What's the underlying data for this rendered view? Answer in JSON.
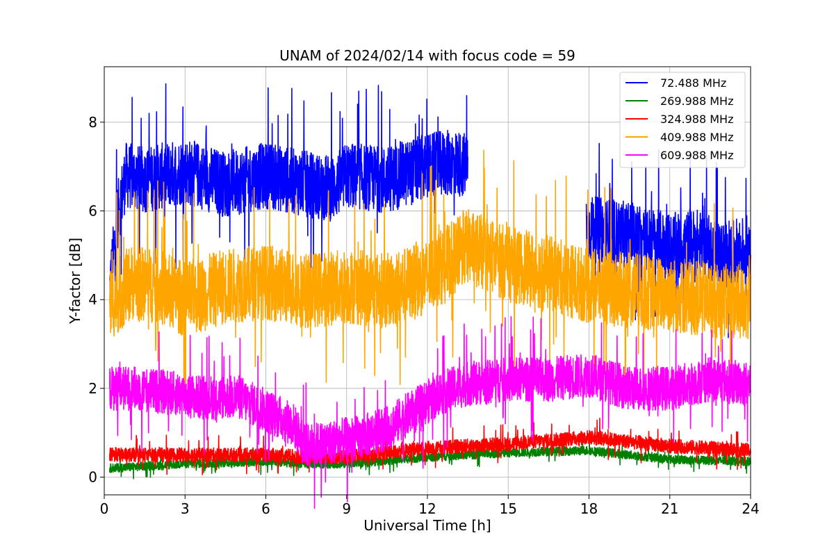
{
  "chart_data": {
    "type": "line",
    "title": "UNAM of 2024/02/14 with focus code = 59",
    "xlabel": "Universal Time [h]",
    "ylabel": "Y-factor [dB]",
    "xlim": [
      0,
      24
    ],
    "ylim": [
      -0.4,
      9.25
    ],
    "xticks": [
      0,
      3,
      6,
      9,
      12,
      15,
      18,
      21,
      24
    ],
    "yticks": [
      0,
      2,
      4,
      6,
      8
    ],
    "xtick_labels": [
      "0",
      "3",
      "6",
      "9",
      "12",
      "15",
      "18",
      "21",
      "24"
    ],
    "ytick_labels": [
      "0",
      "2",
      "4",
      "6",
      "8"
    ],
    "grid": true,
    "legend_position": "top-right",
    "series": [
      {
        "name": " 72.488 MHz",
        "color": "#0000ff",
        "x": [
          0.2,
          0.5,
          0.8,
          1.5,
          3,
          4.5,
          6,
          7.5,
          8.5,
          9,
          10.5,
          12,
          13,
          13.5,
          18,
          19,
          20,
          21,
          22,
          23,
          24
        ],
        "y": [
          4.2,
          5.9,
          6.8,
          6.7,
          6.9,
          6.6,
          6.8,
          6.6,
          6.5,
          6.8,
          6.7,
          7.0,
          7.1,
          7.0,
          5.6,
          5.5,
          5.4,
          5.2,
          5.3,
          5.0,
          5.2
        ],
        "noise": 0.75,
        "visible_ranges": [
          [
            0.2,
            13.5
          ],
          [
            17.9,
            24
          ]
        ]
      },
      {
        "name": "269.988 MHz",
        "color": "#008000",
        "x": [
          0.2,
          3,
          6,
          7.5,
          9,
          12,
          15,
          18,
          21,
          24
        ],
        "y": [
          0.2,
          0.3,
          0.35,
          0.3,
          0.3,
          0.45,
          0.55,
          0.6,
          0.4,
          0.35
        ],
        "noise": 0.1
      },
      {
        "name": "324.988 MHz",
        "color": "#ff0000",
        "x": [
          0.2,
          3,
          6,
          7.5,
          9,
          12,
          15,
          18,
          21,
          24
        ],
        "y": [
          0.5,
          0.5,
          0.5,
          0.45,
          0.45,
          0.65,
          0.75,
          0.9,
          0.7,
          0.6
        ],
        "noise": 0.16
      },
      {
        "name": "409.988 MHz",
        "color": "#ffa500",
        "x": [
          0.2,
          1,
          2,
          3,
          4.5,
          6,
          7.5,
          9,
          10.5,
          12,
          13.5,
          15,
          16.5,
          18,
          19.5,
          21,
          22.5,
          24
        ],
        "y": [
          3.9,
          4.4,
          4.3,
          4.0,
          4.3,
          4.4,
          4.2,
          4.3,
          4.2,
          4.5,
          5.2,
          4.8,
          4.6,
          4.3,
          4.2,
          4.1,
          4.0,
          3.9
        ],
        "noise": 0.85
      },
      {
        "name": "609.988 MHz",
        "color": "#ff00ff",
        "x": [
          0.2,
          1,
          2.5,
          3.5,
          5,
          6,
          7,
          7.5,
          8.5,
          9.5,
          10.5,
          11.5,
          12.5,
          13.5,
          15,
          16.5,
          18,
          19.5,
          21,
          22.5,
          24
        ],
        "y": [
          2.0,
          2.0,
          1.9,
          1.8,
          1.8,
          1.5,
          1.2,
          0.7,
          0.8,
          0.9,
          1.1,
          1.5,
          1.9,
          2.1,
          2.2,
          2.2,
          2.3,
          2.0,
          2.0,
          2.2,
          2.1
        ],
        "noise": 0.5
      }
    ]
  }
}
